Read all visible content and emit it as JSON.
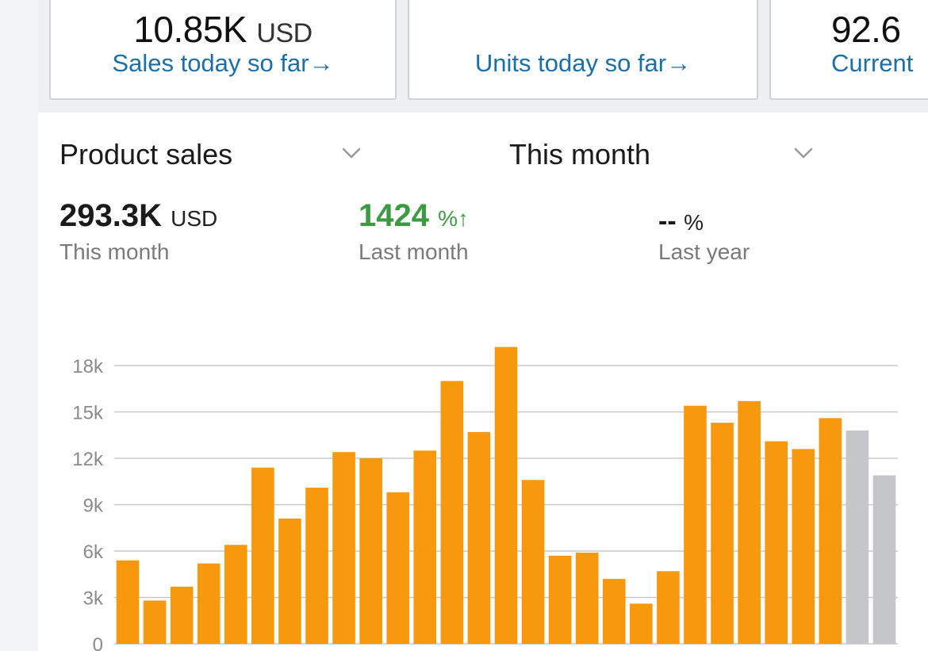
{
  "cards": [
    {
      "value": "10.85K",
      "unit": "USD",
      "link": "Sales today so far→"
    },
    {
      "value": "",
      "unit": "",
      "link": "Units today so far→"
    },
    {
      "value": "92.6",
      "unit": "",
      "link": "Current"
    }
  ],
  "panel": {
    "metric_dropdown": "Product sales",
    "period_dropdown": "This month",
    "stats": {
      "current": {
        "value": "293.3K",
        "unit": "USD",
        "label": "This month"
      },
      "last_month": {
        "value": "1424",
        "unit": "%",
        "arrow": "↑",
        "label": "Last month"
      },
      "last_year": {
        "value": "--",
        "unit": "%",
        "label": "Last year"
      }
    }
  },
  "colors": {
    "bar": "#f7980d",
    "projected": "#c5c6c9",
    "positive": "#3d9a42",
    "link": "#1d6fa8"
  },
  "chart_data": {
    "type": "bar",
    "ylim": [
      0,
      18000
    ],
    "yticks": [
      0,
      3000,
      6000,
      9000,
      12000,
      15000,
      18000
    ],
    "ytick_labels": [
      "0",
      "3k",
      "6k",
      "9k",
      "12k",
      "15k",
      "18k"
    ],
    "grid": true,
    "series": [
      {
        "values": [
          5400,
          2800,
          3700,
          5200,
          6400,
          11400,
          8100,
          10100,
          12400,
          12000,
          9800,
          12500,
          17000,
          13700,
          19200,
          10600,
          5700,
          5900,
          4200,
          2600,
          4700,
          15400,
          14300,
          15700,
          13100,
          12600,
          14600
        ]
      },
      {
        "values": [
          null,
          null,
          null,
          null,
          null,
          null,
          null,
          null,
          null,
          null,
          null,
          null,
          null,
          null,
          null,
          null,
          null,
          null,
          null,
          null,
          null,
          null,
          null,
          null,
          null,
          null,
          null,
          13800,
          10900
        ]
      }
    ]
  }
}
